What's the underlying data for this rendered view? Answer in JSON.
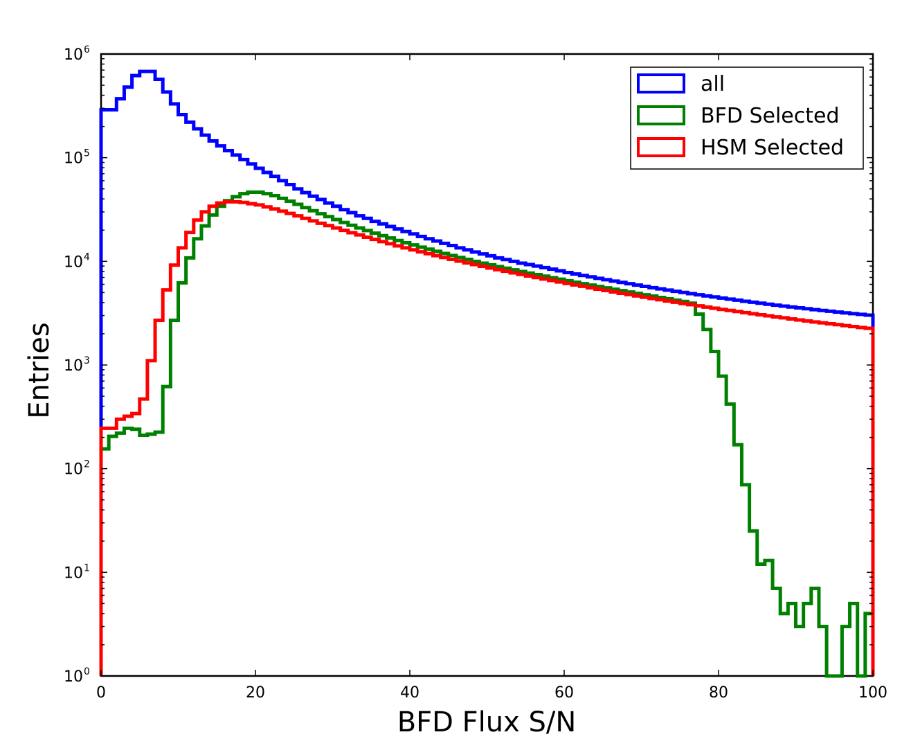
{
  "chart_data": {
    "type": "line",
    "xlabel": "BFD Flux S/N",
    "ylabel": "Entries",
    "xlim": [
      0,
      100
    ],
    "ylim": [
      1,
      1000000
    ],
    "y_scale": "log",
    "x_ticks": [
      0,
      20,
      40,
      60,
      80,
      100
    ],
    "y_ticks": [
      {
        "base": "10",
        "exp": "0",
        "value": 1
      },
      {
        "base": "10",
        "exp": "1",
        "value": 10
      },
      {
        "base": "10",
        "exp": "2",
        "value": 100
      },
      {
        "base": "10",
        "exp": "3",
        "value": 1000
      },
      {
        "base": "10",
        "exp": "4",
        "value": 10000
      },
      {
        "base": "10",
        "exp": "5",
        "value": 100000
      },
      {
        "base": "10",
        "exp": "6",
        "value": 1000000
      }
    ],
    "grid": false,
    "legend_position": "top-right",
    "bin_edges_start": 0,
    "bin_width": 1,
    "series": [
      {
        "name": "all",
        "color": "#0000ff",
        "values": [
          290000,
          290000,
          370000,
          480000,
          620000,
          680000,
          680000,
          570000,
          430000,
          330000,
          260000,
          220000,
          190000,
          165000,
          145000,
          130000,
          117000,
          106000,
          96000,
          87000,
          79000,
          72000,
          66000,
          60000,
          55000,
          50000,
          46000,
          42500,
          39500,
          36500,
          34000,
          31500,
          29500,
          27500,
          26000,
          24300,
          23000,
          21700,
          20500,
          19400,
          18400,
          17400,
          16500,
          15700,
          14900,
          14200,
          13500,
          12900,
          12300,
          11800,
          11300,
          10800,
          10400,
          10000,
          9600,
          9300,
          9000,
          8700,
          8400,
          8100,
          7800,
          7550,
          7300,
          7080,
          6860,
          6650,
          6450,
          6260,
          6080,
          5900,
          5730,
          5570,
          5420,
          5280,
          5140,
          5010,
          4880,
          4760,
          4640,
          4530,
          4420,
          4320,
          4220,
          4120,
          4030,
          3950,
          3860,
          3780,
          3700,
          3630,
          3560,
          3490,
          3420,
          3360,
          3300,
          3240,
          3180,
          3130,
          3080,
          3030
        ]
      },
      {
        "name": "BFD Selected",
        "color": "#008000",
        "values": [
          155,
          205,
          220,
          245,
          240,
          210,
          215,
          225,
          620,
          2700,
          6200,
          10800,
          16500,
          22000,
          28000,
          34000,
          38500,
          42000,
          45000,
          46500,
          46500,
          45000,
          43000,
          40500,
          38000,
          35500,
          33000,
          30800,
          28800,
          27000,
          25300,
          23700,
          22300,
          21000,
          19800,
          18700,
          17700,
          16800,
          15900,
          15100,
          14400,
          13700,
          13100,
          12500,
          11900,
          11400,
          10900,
          10450,
          10000,
          9600,
          9250,
          8900,
          8580,
          8270,
          7980,
          7700,
          7440,
          7190,
          6950,
          6720,
          6500,
          6290,
          6090,
          5900,
          5720,
          5550,
          5380,
          5220,
          5060,
          4910,
          4760,
          4620,
          4480,
          4350,
          4220,
          4100,
          3950,
          3100,
          2200,
          1350,
          780,
          420,
          170,
          70,
          25,
          12,
          13,
          7,
          4,
          5,
          3,
          5,
          7,
          3,
          0.7,
          0.7,
          3,
          5,
          0.7,
          4
        ]
      },
      {
        "name": "HSM Selected",
        "color": "#ff0000",
        "values": [
          245,
          245,
          300,
          320,
          340,
          470,
          1100,
          2700,
          5300,
          9200,
          13500,
          19000,
          25000,
          30000,
          34000,
          36500,
          37500,
          37500,
          37000,
          36000,
          35000,
          33500,
          32000,
          30500,
          29000,
          27500,
          26000,
          24600,
          23300,
          22100,
          21000,
          19900,
          18900,
          18000,
          17100,
          16300,
          15500,
          14800,
          14100,
          13500,
          12900,
          12350,
          11850,
          11350,
          10900,
          10450,
          10050,
          9650,
          9300,
          8950,
          8620,
          8310,
          8020,
          7740,
          7470,
          7220,
          6980,
          6750,
          6530,
          6320,
          6120,
          5920,
          5740,
          5560,
          5390,
          5230,
          5070,
          4920,
          4780,
          4640,
          4510,
          4380,
          4260,
          4140,
          4030,
          3920,
          3820,
          3720,
          3620,
          3530,
          3440,
          3360,
          3280,
          3200,
          3120,
          3050,
          2980,
          2910,
          2850,
          2780,
          2720,
          2660,
          2600,
          2550,
          2500,
          2450,
          2400,
          2350,
          2300,
          2260
        ]
      }
    ]
  }
}
